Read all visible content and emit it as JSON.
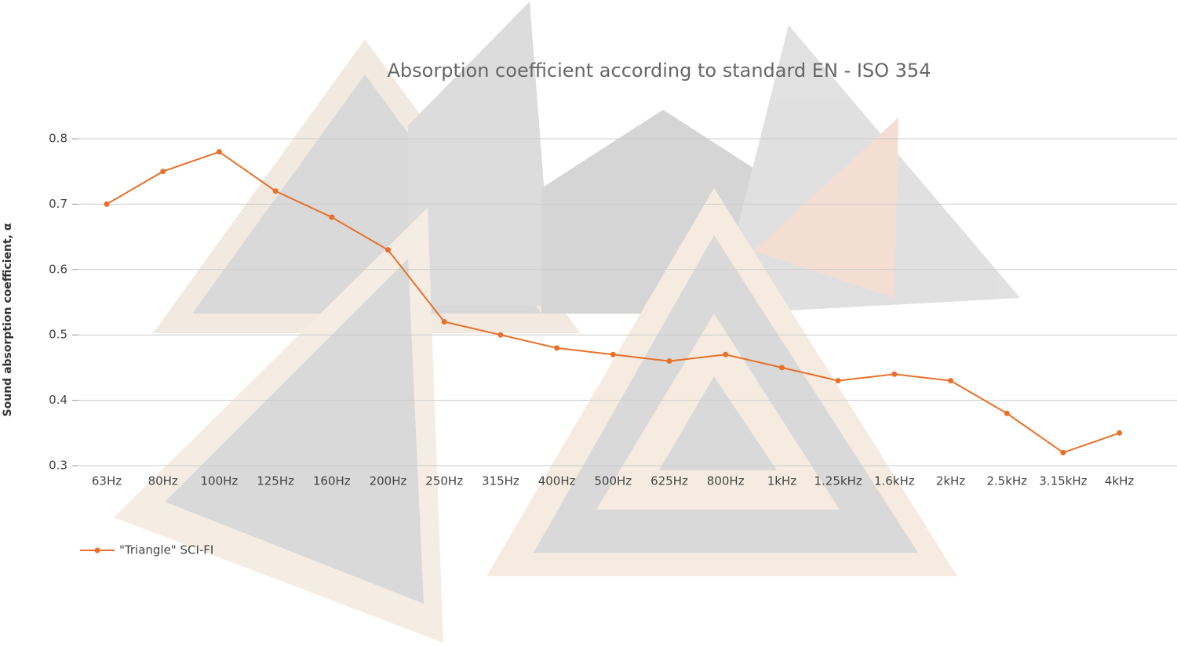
{
  "chart_data": {
    "type": "line",
    "title": "Absorption coefficient according to standard EN - ISO 354",
    "y_label": "Sound absorption coefficient, α",
    "categories": [
      "63Hz",
      "80Hz",
      "100Hz",
      "125Hz",
      "160Hz",
      "200Hz",
      "250Hz",
      "315Hz",
      "400Hz",
      "500Hz",
      "625Hz",
      "800Hz",
      "1kHz",
      "1.25kHz",
      "1.6kHz",
      "2kHz",
      "2.5kHz",
      "3.15kHz",
      "4kHz"
    ],
    "series": [
      {
        "name": "\"Triangle\" SCI-FI",
        "color": "#e8702a",
        "values": [
          0.7,
          0.75,
          0.78,
          0.72,
          0.68,
          0.63,
          0.52,
          0.5,
          0.48,
          0.47,
          0.46,
          0.47,
          0.45,
          0.43,
          0.44,
          0.43,
          0.38,
          0.32,
          0.35
        ]
      }
    ],
    "ylim": [
      0.3,
      0.8
    ],
    "yticks": [
      0.3,
      0.4,
      0.5,
      0.6,
      0.7,
      0.8
    ],
    "grid": true,
    "legend": "bottom-left"
  }
}
